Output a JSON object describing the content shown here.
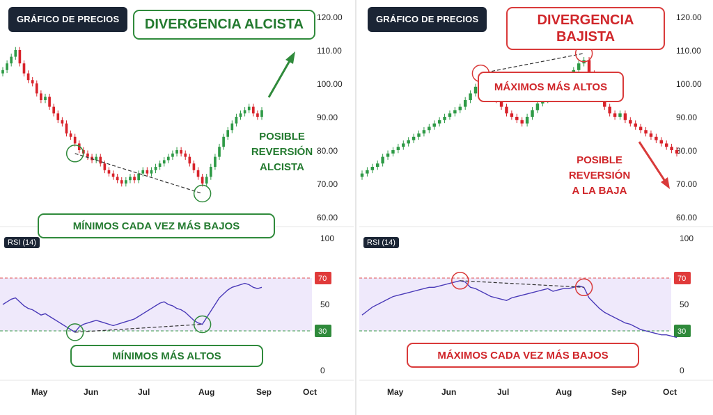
{
  "left": {
    "badge": "GRÁFICO DE PRECIOS",
    "title": "DIVERGENCIA ALCISTA",
    "note": [
      "POSIBLE",
      "REVERSIÓN",
      "ALCISTA"
    ],
    "price_box": "MÍNIMOS CADA VEZ MÁS BAJOS",
    "rsi_box": "MÍNIMOS MÁS ALTOS",
    "rsi_label": "RSI (14)"
  },
  "right": {
    "badge": "GRÁFICO DE PRECIOS",
    "title": [
      "DIVERGENCIA",
      "BAJISTA"
    ],
    "note": [
      "POSIBLE",
      "REVERSIÓN",
      "A LA BAJA"
    ],
    "price_box": "MÁXIMOS MÁS ALTOS",
    "rsi_box": "MÁXIMOS CADA VEZ MÁS BAJOS",
    "rsi_label": "RSI (14)"
  },
  "price_axis": [
    "120.00",
    "110.00",
    "100.00",
    "90.00",
    "80.00",
    "70.00",
    "60.00"
  ],
  "rsi_axis": [
    "100",
    "50",
    "0"
  ],
  "rsi_levels": [
    "70",
    "30"
  ],
  "months_left": [
    "May",
    "Jun",
    "Jul",
    "Aug",
    "Sep",
    "Oct"
  ],
  "months_right": [
    "May",
    "Jun",
    "Jul",
    "Aug",
    "Sep",
    "Oct"
  ],
  "colors": {
    "up": "#2e9a46",
    "down": "#d8222a",
    "rsi_line": "#4a3ab8",
    "rsi_band": "#efe9fb",
    "green": "#237a2f",
    "red": "#d0262a"
  },
  "chart_data": [
    {
      "type": "candlestick",
      "title": "DIVERGENCIA ALCISTA",
      "x_ticks": [
        "May",
        "Jun",
        "Jul",
        "Aug",
        "Sep",
        "Oct"
      ],
      "ylim": [
        60,
        120
      ],
      "close": [
        104,
        106,
        108,
        110,
        106,
        103,
        101,
        100,
        97,
        95,
        96,
        93,
        91,
        89,
        88,
        85,
        84,
        82,
        80,
        79,
        78,
        77,
        78,
        76,
        74,
        73,
        72,
        71,
        70,
        71,
        72,
        71,
        73,
        74,
        73,
        74,
        75,
        76,
        77,
        78,
        79,
        80,
        79,
        78,
        76,
        74,
        72,
        70,
        72,
        75,
        78,
        81,
        84,
        86,
        88,
        90,
        91,
        92,
        93,
        91,
        90,
        92
      ],
      "rsi": [
        50,
        52,
        54,
        55,
        52,
        49,
        47,
        46,
        44,
        42,
        43,
        41,
        39,
        37,
        35,
        33,
        31,
        29,
        33,
        35,
        36,
        37,
        38,
        37,
        36,
        35,
        34,
        35,
        36,
        37,
        38,
        39,
        41,
        43,
        45,
        47,
        49,
        51,
        52,
        50,
        49,
        47,
        46,
        44,
        41,
        38,
        36,
        35,
        40,
        45,
        50,
        55,
        58,
        61,
        63,
        64,
        65,
        66,
        65,
        63,
        62,
        63
      ],
      "rsi_ylim": [
        0,
        100
      ],
      "rsi_levels": [
        70,
        30
      ]
    },
    {
      "type": "candlestick",
      "title": "DIVERGENCIA BAJISTA",
      "x_ticks": [
        "May",
        "Jun",
        "Jul",
        "Aug",
        "Sep",
        "Oct"
      ],
      "ylim": [
        60,
        120
      ],
      "close": [
        73,
        74,
        75,
        76,
        78,
        79,
        80,
        81,
        82,
        83,
        84,
        85,
        86,
        87,
        88,
        89,
        90,
        91,
        92,
        93,
        95,
        97,
        99,
        101,
        100,
        97,
        95,
        93,
        91,
        90,
        89,
        88,
        90,
        92,
        94,
        95,
        96,
        97,
        98,
        100,
        102,
        104,
        106,
        107,
        103,
        99,
        96,
        93,
        91,
        90,
        91,
        89,
        88,
        87,
        86,
        85,
        84,
        83,
        82,
        81,
        80,
        79
      ],
      "rsi": [
        42,
        45,
        48,
        50,
        52,
        54,
        56,
        57,
        58,
        59,
        60,
        61,
        62,
        63,
        63,
        64,
        65,
        66,
        67,
        68,
        67,
        63,
        62,
        60,
        58,
        56,
        55,
        54,
        53,
        55,
        56,
        57,
        58,
        59,
        60,
        61,
        62,
        60,
        61,
        62,
        62,
        63,
        64,
        63,
        55,
        51,
        47,
        44,
        42,
        40,
        38,
        36,
        35,
        33,
        31,
        30,
        29,
        28,
        27,
        27,
        26,
        25
      ],
      "rsi_ylim": [
        0,
        100
      ],
      "rsi_levels": [
        70,
        30
      ]
    }
  ]
}
